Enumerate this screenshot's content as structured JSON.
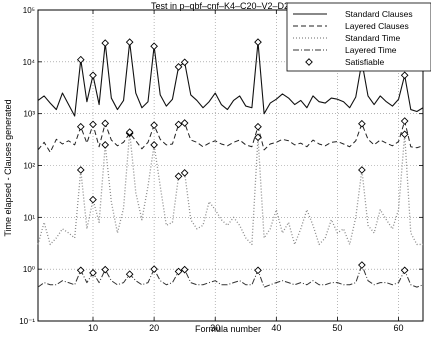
{
  "chart_data": {
    "type": "line",
    "title": "Test in p–qbf–cnf–K4–C20–V2–D2",
    "xlabel": "Formula number",
    "ylabel": "Time elapsed - Clauses generated",
    "xlim": [
      1,
      64
    ],
    "ylim": [
      0.1,
      100000
    ],
    "yscale": "log",
    "xticks": [
      10,
      20,
      30,
      40,
      50,
      60
    ],
    "xtick_labels": [
      "10",
      "20",
      "30",
      "40",
      "50",
      "60"
    ],
    "yticks": [
      0.1,
      1,
      10,
      100,
      1000,
      10000,
      100000
    ],
    "ytick_labels": [
      "10⁻¹",
      "10⁰",
      "10¹",
      "10²",
      "10³",
      "10⁴",
      "10⁵"
    ],
    "grid": true,
    "legend_position": "top-right",
    "x": [
      1,
      2,
      3,
      4,
      5,
      6,
      7,
      8,
      9,
      10,
      11,
      12,
      13,
      14,
      15,
      16,
      17,
      18,
      19,
      20,
      21,
      22,
      23,
      24,
      25,
      26,
      27,
      28,
      29,
      30,
      31,
      32,
      33,
      34,
      35,
      36,
      37,
      38,
      39,
      40,
      41,
      42,
      43,
      44,
      45,
      46,
      47,
      48,
      49,
      50,
      51,
      52,
      53,
      54,
      55,
      56,
      57,
      58,
      59,
      60,
      61,
      62,
      63,
      64
    ],
    "series": [
      {
        "name": "Standard Clauses",
        "style": "solid",
        "values": [
          1800,
          2200,
          1600,
          1200,
          2500,
          1500,
          900,
          11000,
          1700,
          5500,
          1500,
          23000,
          2000,
          1200,
          1800,
          24000,
          2500,
          1300,
          1700,
          20000,
          2300,
          1400,
          1900,
          8000,
          9800,
          2300,
          1800,
          1300,
          1700,
          2500,
          1500,
          1200,
          1800,
          2200,
          1400,
          1300,
          24000,
          1000,
          1600,
          1900,
          2400,
          2000,
          1500,
          1800,
          1300,
          2200,
          1700,
          1600,
          2000,
          1900,
          1700,
          1300,
          2100,
          10000,
          2200,
          1500,
          2200,
          1700,
          1400,
          1900,
          5500,
          1200,
          1100,
          1300
        ]
      },
      {
        "name": "Layered Clauses",
        "style": "dashed",
        "values": [
          200,
          280,
          180,
          320,
          260,
          300,
          250,
          560,
          270,
          620,
          230,
          650,
          310,
          240,
          280,
          420,
          300,
          210,
          280,
          600,
          320,
          250,
          260,
          620,
          660,
          310,
          280,
          230,
          270,
          300,
          260,
          240,
          280,
          310,
          250,
          230,
          560,
          200,
          260,
          280,
          320,
          300,
          250,
          270,
          230,
          310,
          260,
          240,
          280,
          290,
          260,
          230,
          300,
          640,
          320,
          250,
          310,
          270,
          240,
          290,
          720,
          230,
          220,
          240
        ]
      },
      {
        "name": "Standard Time",
        "style": "dotted",
        "values": [
          3,
          8,
          3,
          4,
          6,
          5,
          4,
          82,
          6,
          22,
          8,
          250,
          20,
          5,
          15,
          440,
          30,
          9,
          40,
          250,
          40,
          7,
          8,
          62,
          72,
          9,
          6,
          7,
          20,
          14,
          9,
          7,
          10,
          7,
          4,
          3,
          350,
          4,
          6,
          14,
          5,
          8,
          3,
          6,
          14,
          7,
          3,
          4,
          9,
          5,
          6,
          3,
          10,
          82,
          7,
          5,
          14,
          9,
          6,
          14,
          400,
          5,
          3,
          3
        ]
      },
      {
        "name": "Layered Time",
        "style": "dashdot",
        "values": [
          0.45,
          0.55,
          0.5,
          0.5,
          0.6,
          0.55,
          0.5,
          0.95,
          0.55,
          0.85,
          0.55,
          0.98,
          0.6,
          0.5,
          0.55,
          0.8,
          0.6,
          0.5,
          0.55,
          1.0,
          0.6,
          0.5,
          0.55,
          0.9,
          0.98,
          0.55,
          0.5,
          0.5,
          0.55,
          0.6,
          0.5,
          0.5,
          0.55,
          0.6,
          0.5,
          0.5,
          0.95,
          0.45,
          0.5,
          0.55,
          0.6,
          0.55,
          0.5,
          0.55,
          0.5,
          0.6,
          0.5,
          0.5,
          0.55,
          0.55,
          0.5,
          0.5,
          0.55,
          1.2,
          0.6,
          0.5,
          0.55,
          0.55,
          0.5,
          0.55,
          0.95,
          0.5,
          0.45,
          0.5
        ]
      },
      {
        "name": "Satisfiable",
        "style": "diamond-markers",
        "x": [
          8,
          8,
          8,
          8,
          10,
          10,
          10,
          10,
          12,
          12,
          12,
          12,
          16,
          16,
          16,
          16,
          20,
          20,
          20,
          20,
          24,
          24,
          24,
          24,
          25,
          25,
          25,
          25,
          37,
          37,
          37,
          37,
          54,
          54,
          54,
          54,
          61,
          61,
          61,
          61
        ],
        "values": [
          11000,
          560,
          82,
          0.95,
          5500,
          620,
          22,
          0.85,
          23000,
          650,
          250,
          0.98,
          24000,
          420,
          440,
          0.8,
          20000,
          600,
          250,
          1.0,
          8000,
          620,
          62,
          0.9,
          9800,
          660,
          72,
          0.98,
          24000,
          560,
          350,
          0.95,
          10000,
          640,
          82,
          1.2,
          5500,
          720,
          400,
          0.95
        ]
      }
    ]
  }
}
